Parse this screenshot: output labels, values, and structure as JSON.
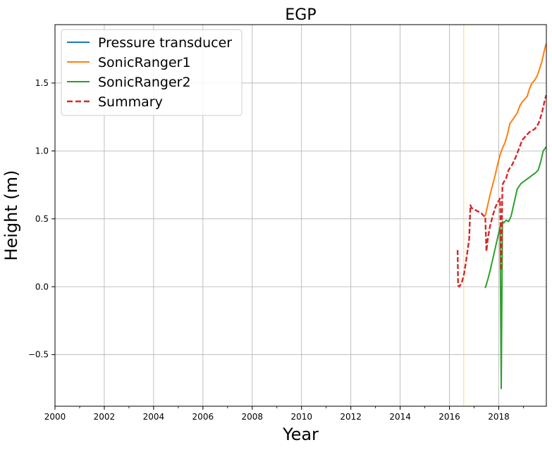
{
  "chart_data": {
    "type": "line",
    "title": "EGP",
    "xlabel": "Year",
    "ylabel": "Height (m)",
    "xlim": [
      2000.0,
      2019.93
    ],
    "ylim": [
      -0.88,
      1.93
    ],
    "grid": true,
    "legend_position": "top-left",
    "x_ticks": [
      2000,
      2002,
      2004,
      2006,
      2008,
      2010,
      2012,
      2014,
      2016,
      2018
    ],
    "x_tick_labels": [
      "2000",
      "2002",
      "2004",
      "2006",
      "2008",
      "2010",
      "2012",
      "2014",
      "2016",
      "2018"
    ],
    "y_ticks": [
      -0.5,
      0.0,
      0.5,
      1.0,
      1.5
    ],
    "y_tick_labels": [
      "−0.5",
      "0.0",
      "0.5",
      "1.0",
      "1.5"
    ],
    "vertical_marker": {
      "x": 2016.58,
      "color": "#ffd27f"
    },
    "series": [
      {
        "name": "Pressure transducer",
        "color": "#1f77b4",
        "dash": "solid",
        "x": [],
        "y": []
      },
      {
        "name": "SonicRanger1",
        "color": "#ff7f0e",
        "dash": "solid",
        "x": [
          2017.45,
          2017.55,
          2017.65,
          2017.75,
          2017.85,
          2017.95,
          2018.05,
          2018.15,
          2018.25,
          2018.35,
          2018.45,
          2018.6,
          2018.75,
          2018.85,
          2018.95,
          2019.05,
          2019.15,
          2019.25,
          2019.35,
          2019.45,
          2019.55,
          2019.65,
          2019.75,
          2019.85,
          2019.92
        ],
        "y": [
          0.52,
          0.6,
          0.68,
          0.75,
          0.82,
          0.9,
          0.97,
          1.02,
          1.06,
          1.12,
          1.2,
          1.24,
          1.28,
          1.33,
          1.36,
          1.38,
          1.4,
          1.46,
          1.5,
          1.52,
          1.55,
          1.6,
          1.66,
          1.74,
          1.79
        ]
      },
      {
        "name": "SonicRanger2",
        "color": "#2ca02c",
        "dash": "solid",
        "x": [
          2017.45,
          2017.55,
          2017.65,
          2017.75,
          2017.85,
          2017.95,
          2018.05,
          2018.1,
          2018.15,
          2018.2,
          2018.3,
          2018.4,
          2018.5,
          2018.6,
          2018.75,
          2018.9,
          2019.05,
          2019.2,
          2019.35,
          2019.5,
          2019.6,
          2019.7,
          2019.8,
          2019.92
        ],
        "y": [
          -0.01,
          0.05,
          0.12,
          0.2,
          0.28,
          0.36,
          0.44,
          -0.75,
          0.48,
          0.47,
          0.49,
          0.48,
          0.52,
          0.6,
          0.72,
          0.76,
          0.78,
          0.8,
          0.82,
          0.84,
          0.86,
          0.92,
          1.0,
          1.03
        ]
      },
      {
        "name": "Summary",
        "color": "#d62728",
        "dash": "dashed",
        "x": [
          2016.33,
          2016.35,
          2016.4,
          2016.5,
          2016.6,
          2016.7,
          2016.8,
          2016.85,
          2016.9,
          2017.0,
          2017.1,
          2017.2,
          2017.3,
          2017.4,
          2017.45,
          2017.5,
          2017.55,
          2017.65,
          2017.75,
          2017.85,
          2017.95,
          2018.05,
          2018.1,
          2018.15,
          2018.2,
          2018.3,
          2018.4,
          2018.55,
          2018.7,
          2018.85,
          2018.95,
          2019.05,
          2019.15,
          2019.25,
          2019.35,
          2019.45,
          2019.55,
          2019.65,
          2019.75,
          2019.85,
          2019.92
        ],
        "y": [
          0.27,
          0.01,
          0.0,
          0.03,
          0.1,
          0.22,
          0.35,
          0.6,
          0.58,
          0.57,
          0.56,
          0.55,
          0.54,
          0.52,
          0.52,
          0.26,
          0.35,
          0.45,
          0.52,
          0.58,
          0.62,
          0.65,
          0.12,
          0.75,
          0.77,
          0.8,
          0.86,
          0.9,
          0.96,
          1.03,
          1.08,
          1.1,
          1.12,
          1.14,
          1.15,
          1.16,
          1.18,
          1.22,
          1.28,
          1.36,
          1.41
        ]
      }
    ]
  }
}
